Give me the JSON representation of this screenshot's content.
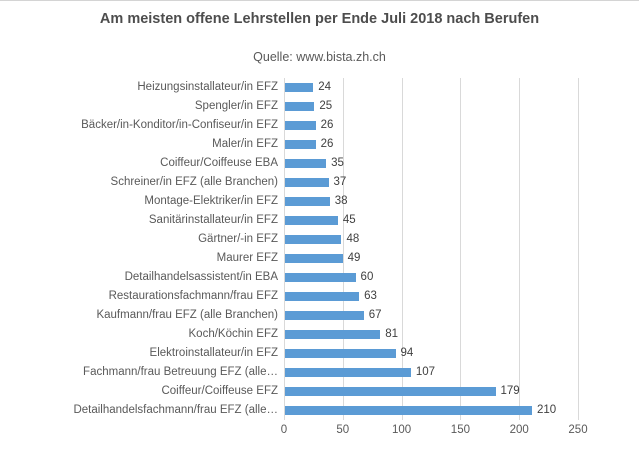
{
  "chart": {
    "title": "Am meisten offene Lehrstellen per Ende Juli 2018 nach Berufen",
    "subtitle": "Quelle: www.bista.zh.ch"
  },
  "colors": {
    "bar": "#5b9bd5",
    "grid": "#d9d9d9",
    "title_text": "#4d4d4d",
    "label_text": "#595959"
  },
  "chart_data": {
    "type": "bar",
    "orientation": "horizontal",
    "title": "Am meisten offene Lehrstellen per Ende Juli 2018 nach Berufen",
    "subtitle": "Quelle: www.bista.zh.ch",
    "xlabel": "",
    "ylabel": "",
    "xlim": [
      0,
      250
    ],
    "x_ticks": [
      0,
      50,
      100,
      150,
      200,
      250
    ],
    "grid": true,
    "value_labels_shown": true,
    "categories": [
      "Heizungsinstallateur/in EFZ",
      "Spengler/in EFZ",
      "Bäcker/in-Konditor/in-Confiseur/in EFZ",
      "Maler/in EFZ",
      "Coiffeur/Coiffeuse EBA",
      "Schreiner/in EFZ (alle Branchen)",
      "Montage-Elektriker/in EFZ",
      "Sanitärinstallateur/in EFZ",
      "Gärtner/-in EFZ",
      "Maurer EFZ",
      "Detailhandelsassistent/in EBA",
      "Restaurationsfachmann/frau EFZ",
      "Kaufmann/frau EFZ (alle Branchen)",
      "Koch/Köchin EFZ",
      "Elektroinstallateur/in EFZ",
      "Fachmann/frau Betreuung EFZ (alle…",
      "Coiffeur/Coiffeuse EFZ",
      "Detailhandelsfachmann/frau EFZ (alle…"
    ],
    "values": [
      24,
      25,
      26,
      26,
      35,
      37,
      38,
      45,
      48,
      49,
      60,
      63,
      67,
      81,
      94,
      107,
      179,
      210
    ]
  }
}
